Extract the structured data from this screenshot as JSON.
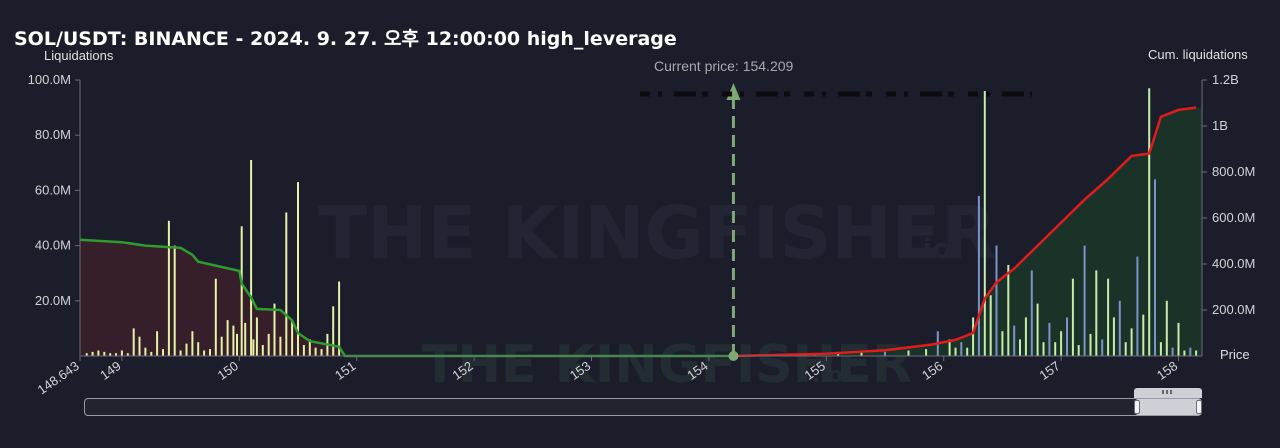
{
  "header": {
    "title": "SOL/USDT: BINANCE - 2024. 9. 27. 오후 12:00:00 high_leverage"
  },
  "watermark": {
    "text_main": "THE KINGFISHER",
    "suffix": ".io"
  },
  "chart_data": {
    "type": "bar",
    "title": "SOL/USDT: BINANCE - 2024. 9. 27. 오후 12:00:00 high_leverage",
    "xlabel": "Price",
    "ylabel": "Liquidations",
    "y2label": "Cum. liquidations",
    "xlim": [
      148.643,
      158.2
    ],
    "ylim": [
      0,
      100000000
    ],
    "y2lim": [
      0,
      1200000000
    ],
    "x_ticks": [
      "148.643",
      "149",
      "150",
      "151",
      "152",
      "153",
      "154",
      "155",
      "156",
      "157",
      "158"
    ],
    "y_ticks": [
      "20.0M",
      "40.0M",
      "60.0M",
      "80.0M",
      "100.0M"
    ],
    "y2_ticks": [
      "200.0M",
      "400.0M",
      "600.0M",
      "800.0M",
      "1B",
      "1.2B"
    ],
    "grid": false,
    "current_price": {
      "label": "Current price: 154.209",
      "value": 154.209
    },
    "colors": {
      "long_bar": "#e6f2a6",
      "short_bar_blue": "#7b93c6",
      "short_bar_green": "#c8ecaa",
      "cum_long": "#2e9c2e",
      "cum_short": "#e01c1c",
      "long_fill": "#3a1f2a",
      "short_fill": "#1c3528",
      "arrow": "#7fa874"
    },
    "series": [
      {
        "name": "Liquidations",
        "x": [
          148.7,
          148.75,
          148.8,
          148.85,
          148.9,
          148.95,
          149.0,
          149.05,
          149.1,
          149.15,
          149.2,
          149.25,
          149.3,
          149.35,
          149.4,
          149.45,
          149.5,
          149.55,
          149.6,
          149.65,
          149.7,
          149.75,
          149.8,
          149.85,
          149.9,
          149.95,
          149.98,
          150.02,
          150.05,
          150.1,
          150.12,
          150.15,
          150.2,
          150.25,
          150.3,
          150.35,
          150.4,
          150.45,
          150.5,
          150.55,
          150.6,
          150.65,
          150.7,
          150.75,
          150.8,
          150.85,
          154.9,
          155.1,
          155.3,
          155.5,
          155.7,
          155.85,
          155.95,
          156.05,
          156.1,
          156.15,
          156.2,
          156.25,
          156.3,
          156.35,
          156.4,
          156.45,
          156.5,
          156.55,
          156.6,
          156.65,
          156.7,
          156.75,
          156.8,
          156.85,
          156.9,
          156.95,
          157.0,
          157.05,
          157.1,
          157.15,
          157.2,
          157.25,
          157.3,
          157.35,
          157.4,
          157.45,
          157.5,
          157.55,
          157.6,
          157.65,
          157.7,
          157.75,
          157.8,
          157.85,
          157.9,
          157.95,
          158.0,
          158.05,
          158.1,
          158.15
        ],
        "values": [
          1000000,
          1500000,
          2000000,
          1500000,
          1000000,
          1000000,
          2000000,
          1000000,
          10000000,
          7000000,
          3000000,
          1500000,
          9000000,
          2500000,
          49000000,
          40000000,
          2000000,
          4500000,
          9000000,
          5000000,
          2000000,
          2500000,
          28000000,
          7000000,
          13000000,
          11000000,
          8000000,
          47000000,
          12000000,
          71000000,
          6000000,
          14000000,
          4000000,
          8000000,
          19000000,
          7000000,
          52000000,
          13000000,
          63000000,
          4000000,
          6000000,
          3000000,
          2500000,
          8000000,
          18000000,
          27000000,
          1000000,
          1500000,
          2000000,
          1500000,
          2000000,
          2500000,
          9000000,
          6000000,
          3000000,
          5000000,
          3000000,
          14000000,
          58000000,
          96000000,
          22000000,
          40000000,
          9000000,
          33000000,
          11000000,
          6000000,
          14000000,
          31000000,
          19000000,
          5000000,
          12000000,
          5000000,
          9000000,
          14000000,
          28000000,
          4000000,
          40000000,
          8000000,
          31000000,
          6000000,
          28000000,
          14000000,
          20000000,
          5000000,
          10000000,
          36000000,
          15000000,
          97000000,
          64000000,
          5000000,
          20000000,
          3000000,
          12000000,
          2000000,
          3000000,
          2000000
        ]
      },
      {
        "name": "Cum. liquidations",
        "x": [
          148.643,
          149.0,
          149.2,
          149.5,
          149.6,
          149.65,
          150.0,
          150.02,
          150.1,
          150.15,
          150.35,
          150.45,
          150.5,
          150.6,
          150.85,
          150.9,
          154.209,
          155.0,
          155.5,
          155.9,
          156.1,
          156.25,
          156.35,
          156.45,
          156.6,
          156.8,
          157.0,
          157.2,
          157.4,
          157.6,
          157.75,
          157.85,
          158.0,
          158.15
        ],
        "values": [
          505000000,
          495000000,
          480000000,
          470000000,
          440000000,
          410000000,
          370000000,
          315000000,
          255000000,
          205000000,
          200000000,
          155000000,
          100000000,
          65000000,
          40000000,
          0,
          0,
          10000000,
          25000000,
          50000000,
          70000000,
          100000000,
          250000000,
          320000000,
          380000000,
          480000000,
          580000000,
          680000000,
          770000000,
          870000000,
          880000000,
          1040000000,
          1070000000,
          1080000000
        ]
      }
    ]
  }
}
